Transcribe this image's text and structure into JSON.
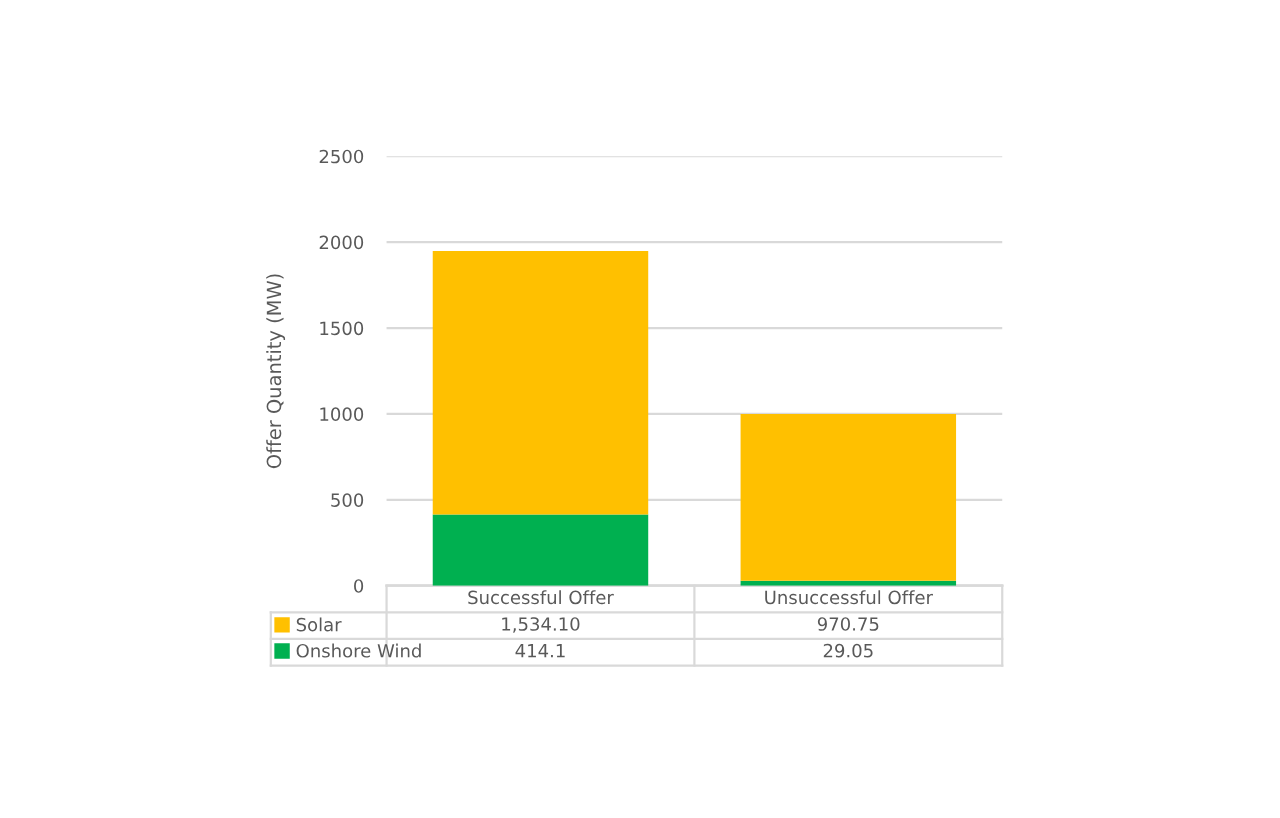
{
  "chart_data": {
    "type": "bar",
    "stacked": true,
    "ylabel": "Offer Quantity (MW)",
    "categories": [
      "Successful Offer",
      "Unsuccessful Offer"
    ],
    "series": [
      {
        "name": "Onshore Wind",
        "color": "#00b050",
        "values": [
          414.1,
          29.05
        ],
        "value_labels": [
          "414.1",
          "29.05"
        ]
      },
      {
        "name": "Solar",
        "color": "#ffc000",
        "values": [
          1534.1,
          970.75
        ],
        "value_labels": [
          "1,534.10",
          "970.75"
        ]
      }
    ],
    "ylim": [
      0,
      2500
    ],
    "yticks": [
      0,
      500,
      1000,
      1500,
      2000,
      2500
    ],
    "grid": "y",
    "legend": "bottom left"
  }
}
